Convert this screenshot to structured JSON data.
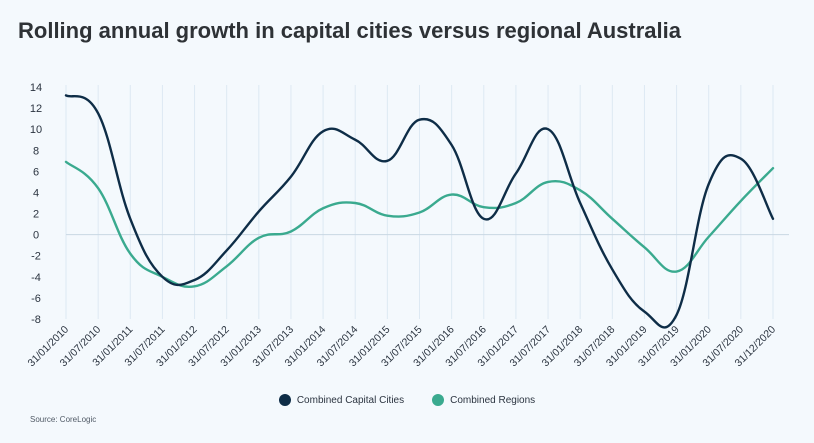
{
  "title": "Rolling annual growth in capital cities versus regional Australia",
  "source": "Source: CoreLogic",
  "colors": {
    "capital": "#0e2d47",
    "regions": "#3aaa8f",
    "grid": "#dde9f3",
    "zero": "#c9d7e3"
  },
  "chart_data": {
    "type": "line",
    "title": "Rolling annual growth in capital cities versus regional Australia",
    "xlabel": "",
    "ylabel": "",
    "ylim": [
      -8,
      14
    ],
    "yticks": [
      14,
      12,
      10,
      8,
      6,
      4,
      2,
      0,
      -2,
      -4,
      -6,
      -8
    ],
    "x": [
      "31/01/2010",
      "31/07/2010",
      "31/01/2011",
      "31/07/2011",
      "31/01/2012",
      "31/07/2012",
      "31/01/2013",
      "31/07/2013",
      "31/01/2014",
      "31/07/2014",
      "31/01/2015",
      "31/07/2015",
      "31/01/2016",
      "31/07/2016",
      "31/01/2017",
      "31/07/2017",
      "31/01/2018",
      "31/07/2018",
      "31/01/2019",
      "31/07/2019",
      "31/01/2020",
      "31/07/2020",
      "31/12/2020"
    ],
    "grid": "vertical",
    "legend_position": "bottom",
    "series": [
      {
        "name": "Combined Capital Cities",
        "color": "#0e2d47",
        "values": [
          13.2,
          11.5,
          1.5,
          -4.0,
          -4.3,
          -1.5,
          2.2,
          5.5,
          9.8,
          9.0,
          7.0,
          10.9,
          8.5,
          1.5,
          5.8,
          10.0,
          3.0,
          -3.3,
          -7.3,
          -7.6,
          4.8,
          7.2,
          1.5
        ]
      },
      {
        "name": "Combined Regions",
        "color": "#3aaa8f",
        "values": [
          6.9,
          4.4,
          -1.8,
          -4.0,
          -4.9,
          -3.0,
          -0.3,
          0.3,
          2.5,
          3.0,
          1.8,
          2.1,
          3.8,
          2.6,
          3.0,
          5.0,
          4.2,
          1.5,
          -1.2,
          -3.5,
          -0.2,
          3.2,
          6.3
        ]
      }
    ]
  }
}
